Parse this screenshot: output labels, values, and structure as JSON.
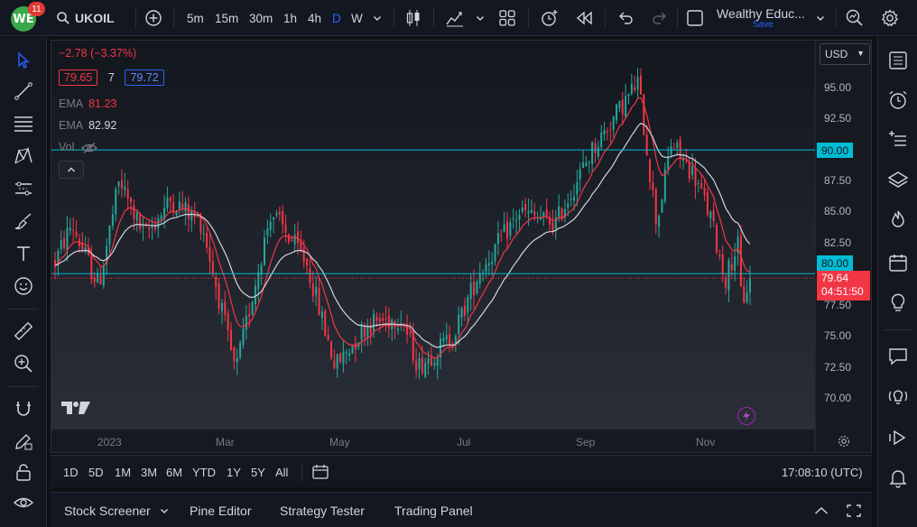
{
  "topbar": {
    "notification_count": "11",
    "symbol": "UKOIL",
    "timeframes": [
      "5m",
      "15m",
      "30m",
      "1h",
      "4h",
      "D",
      "W"
    ],
    "active_timeframe": "D",
    "layout_name": "Wealthy Educ...",
    "save_label": "Save"
  },
  "legend": {
    "change": "−2.78 (−3.37%)",
    "sell_price": "79.65",
    "spread": "7",
    "buy_price": "79.72",
    "indicators": [
      {
        "name": "EMA",
        "value": "81.23",
        "color": "#f23645"
      },
      {
        "name": "EMA",
        "value": "82.92",
        "color": "#d1d4dc"
      },
      {
        "name": "Vol",
        "value": "",
        "color": "#787b86"
      }
    ]
  },
  "price_axis": {
    "currency": "USD",
    "ticks": [
      "95.00",
      "92.50",
      "90.00",
      "87.50",
      "85.00",
      "82.50",
      "80.00",
      "77.50",
      "75.00",
      "72.50",
      "70.00"
    ],
    "level_high": "90.00",
    "level_low": "80.00",
    "last_price": "79.64",
    "countdown": "04:51:50"
  },
  "time_axis": {
    "ticks": [
      "2023",
      "Mar",
      "May",
      "Jul",
      "Sep",
      "Nov"
    ]
  },
  "range_bar": {
    "ranges": [
      "1D",
      "5D",
      "1M",
      "3M",
      "6M",
      "YTD",
      "1Y",
      "5Y",
      "All"
    ],
    "clock": "17:08:10 (UTC)"
  },
  "bottom_panel": {
    "tabs": [
      "Stock Screener",
      "Pine Editor",
      "Strategy Tester",
      "Trading Panel"
    ]
  },
  "colors": {
    "up": "#26a69a",
    "down": "#f23645",
    "ema_fast": "#f23645",
    "ema_slow": "#d1d4dc",
    "level_line": "#00bcd4",
    "accent": "#2962ff"
  },
  "chart_data": {
    "type": "candlestick",
    "symbol": "UKOIL",
    "interval": "D",
    "x_range": [
      "2022-12",
      "2023-11"
    ],
    "ylim": [
      68.5,
      96.5
    ],
    "last_price": 79.64,
    "horizontal_levels": [
      90.0,
      80.0
    ],
    "close_path_estimate": [
      {
        "x": "2022-12-20",
        "close": 81
      },
      {
        "x": "2022-12-28",
        "close": 84
      },
      {
        "x": "2023-01-10",
        "close": 79
      },
      {
        "x": "2023-01-20",
        "close": 87.5
      },
      {
        "x": "2023-02-01",
        "close": 83
      },
      {
        "x": "2023-02-14",
        "close": 86
      },
      {
        "x": "2023-03-01",
        "close": 84
      },
      {
        "x": "2023-03-17",
        "close": 72
      },
      {
        "x": "2023-04-03",
        "close": 85
      },
      {
        "x": "2023-04-20",
        "close": 81
      },
      {
        "x": "2023-05-04",
        "close": 72.5
      },
      {
        "x": "2023-05-20",
        "close": 76
      },
      {
        "x": "2023-06-05",
        "close": 76.5
      },
      {
        "x": "2023-06-13",
        "close": 72.5
      },
      {
        "x": "2023-06-30",
        "close": 75
      },
      {
        "x": "2023-07-12",
        "close": 80
      },
      {
        "x": "2023-08-01",
        "close": 85
      },
      {
        "x": "2023-08-18",
        "close": 84
      },
      {
        "x": "2023-09-05",
        "close": 90
      },
      {
        "x": "2023-09-27",
        "close": 95.5
      },
      {
        "x": "2023-10-06",
        "close": 84
      },
      {
        "x": "2023-10-13",
        "close": 90.5
      },
      {
        "x": "2023-10-24",
        "close": 88
      },
      {
        "x": "2023-11-01",
        "close": 84.5
      },
      {
        "x": "2023-11-08",
        "close": 79.5
      },
      {
        "x": "2023-11-14",
        "close": 82.5
      },
      {
        "x": "2023-11-16",
        "close": 77.5
      },
      {
        "x": "2023-11-20",
        "close": 79.64
      }
    ]
  }
}
